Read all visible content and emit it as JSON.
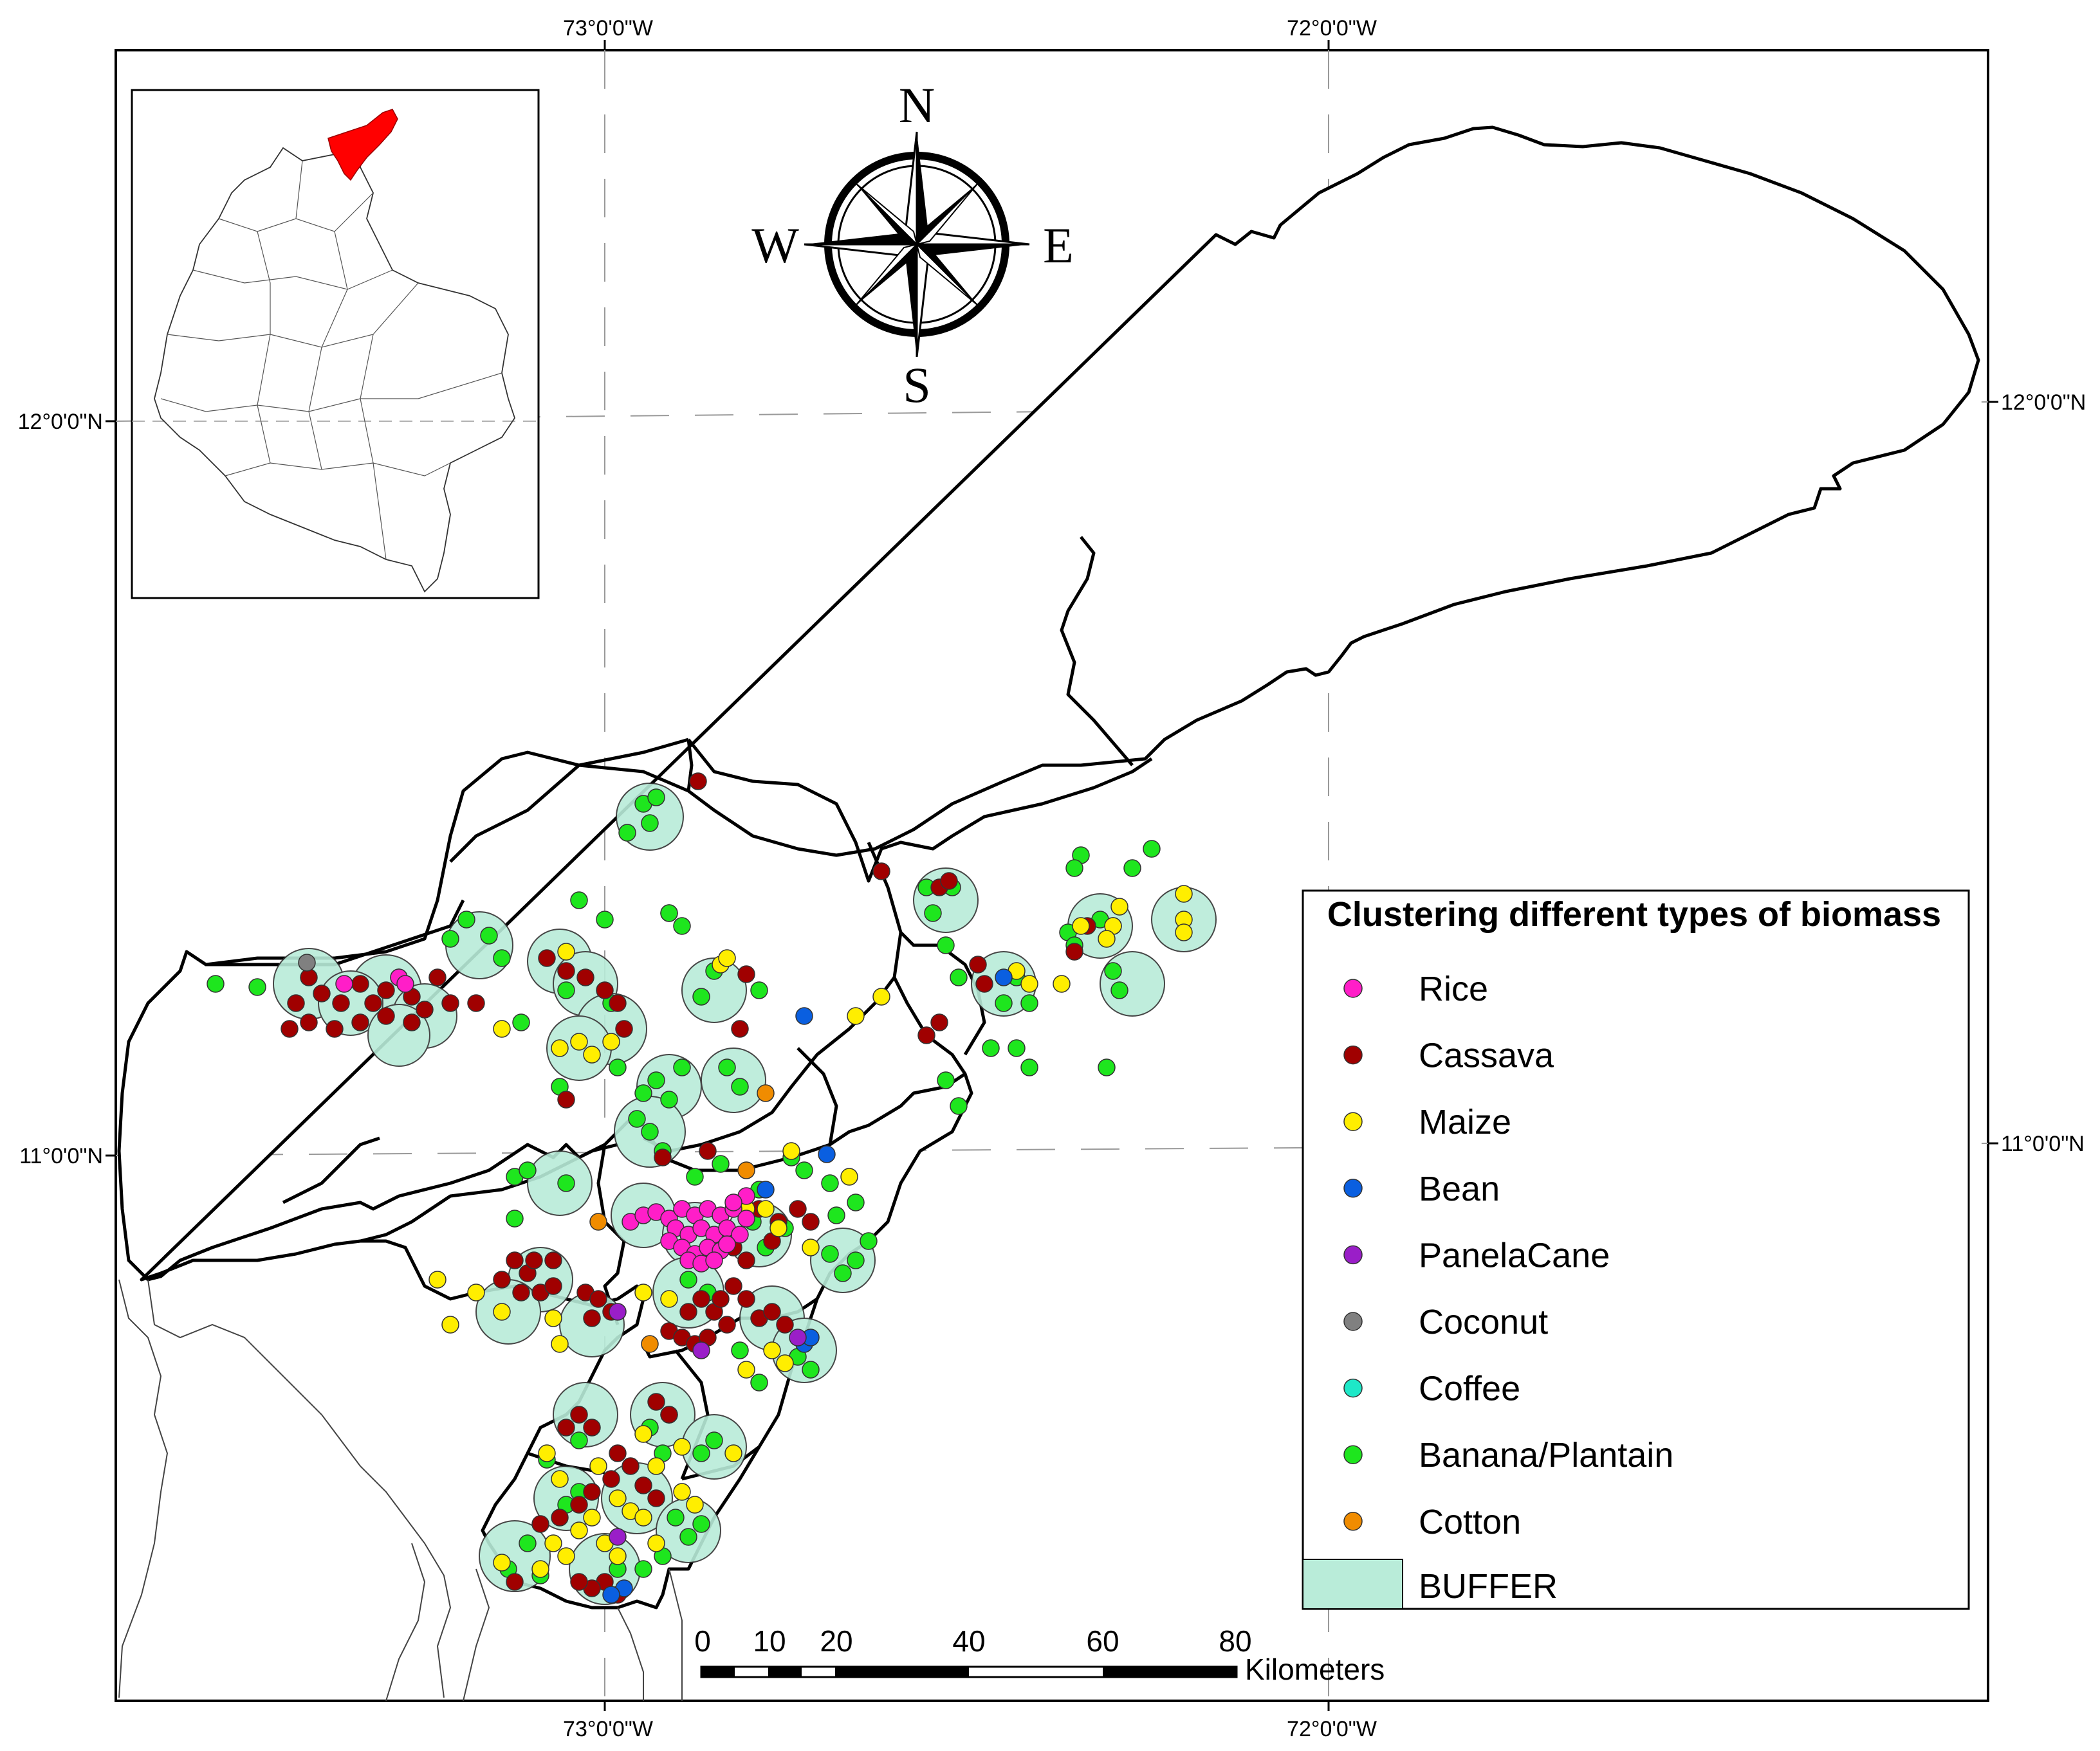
{
  "graticule": {
    "lon_top": [
      "73°0'0\"W",
      "72°0'0\"W"
    ],
    "lon_bottom": [
      "73°0'0\"W",
      "72°0'0\"W"
    ],
    "lat_left": [
      "12°0'0\"N",
      "11°0'0\"N"
    ],
    "lat_right": [
      "12°0'0\"N",
      "11°0'0\"N"
    ]
  },
  "compass": {
    "n": "N",
    "s": "S",
    "e": "E",
    "w": "W"
  },
  "legend": {
    "title": "Clustering different types of biomass",
    "items": [
      {
        "label": "Rice",
        "color": "#ff1ec8"
      },
      {
        "label": "Cassava",
        "color": "#a00000"
      },
      {
        "label": "Maize",
        "color": "#ffee00"
      },
      {
        "label": "Bean",
        "color": "#0a5fe0"
      },
      {
        "label": "PanelaCane",
        "color": "#9a1ec8"
      },
      {
        "label": "Coconut",
        "color": "#808080"
      },
      {
        "label": "Coffee",
        "color": "#1ee8c8"
      },
      {
        "label": "Banana/Plantain",
        "color": "#1ee61e"
      },
      {
        "label": "Cotton",
        "color": "#f08c00"
      }
    ],
    "buffer_label": "BUFFER",
    "buffer_color": "#b9ecd9"
  },
  "scale_bar": {
    "ticks": [
      "0",
      "10",
      "20",
      "40",
      "60",
      "80"
    ],
    "unit": "Kilometers"
  },
  "inset": {
    "highlight_color": "#ff0000"
  }
}
